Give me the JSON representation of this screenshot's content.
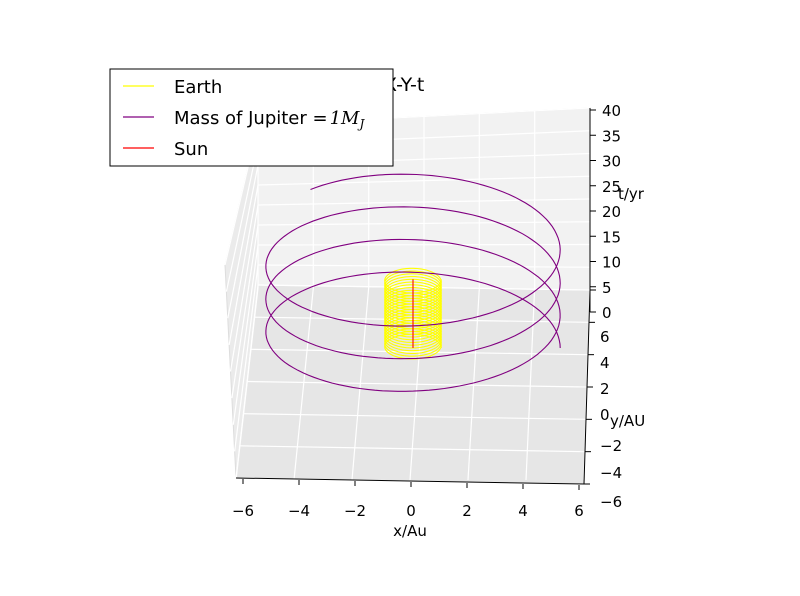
{
  "chart_data": {
    "type": "line",
    "projection": "3d",
    "title": "X-Y-t",
    "xlabel": "x/Au",
    "ylabel": "y/AU",
    "zlabel": "t/yr",
    "xlim": [
      -6,
      6
    ],
    "ylim": [
      -6,
      6
    ],
    "zlim": [
      0,
      40
    ],
    "xticks": [
      "−6",
      "−4",
      "−2",
      "0",
      "2",
      "4",
      "6"
    ],
    "yticks": [
      "−6",
      "−4",
      "−2",
      "0",
      "2",
      "4",
      "6"
    ],
    "zticks": [
      "0",
      "5",
      "10",
      "15",
      "20",
      "25",
      "30",
      "35",
      "40"
    ],
    "grid": true,
    "legend_position": "top-left",
    "series": [
      {
        "name": "Earth",
        "color": "#ffff00",
        "radius_au": 1.0,
        "period_yr": 1.0,
        "t_range": [
          0,
          25
        ]
      },
      {
        "name": "Mass of Jupiter =",
        "name_math": "1M",
        "name_math_sub": "J",
        "color": "#800080",
        "radius_au": 5.2,
        "period_yr": 11.86,
        "t_range": [
          0,
          40
        ]
      },
      {
        "name": "Sun",
        "color": "#ff0000",
        "radius_au": 0.0,
        "period_yr": 1.0,
        "t_range": [
          0,
          25
        ]
      }
    ]
  }
}
